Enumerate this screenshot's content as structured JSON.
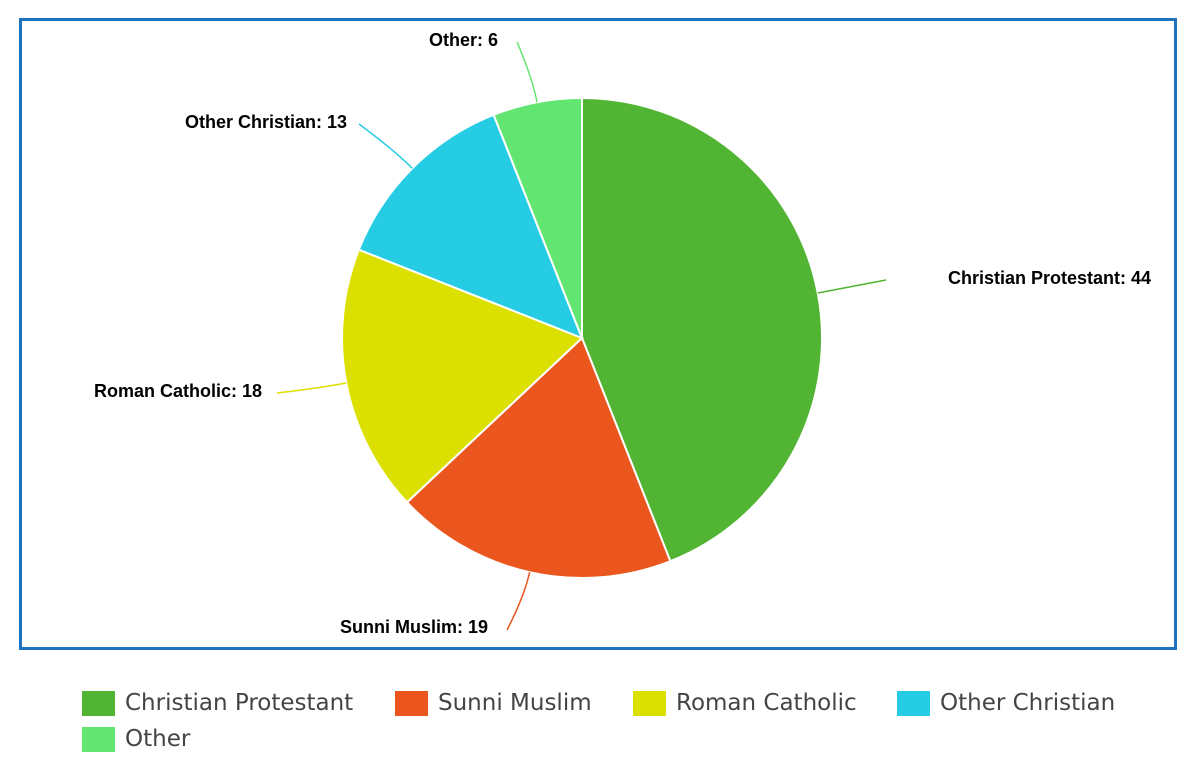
{
  "chart_data": {
    "type": "pie",
    "categories": [
      "Christian Protestant",
      "Sunni Muslim",
      "Roman Catholic",
      "Other Christian",
      "Other"
    ],
    "values": [
      44,
      19,
      18,
      13,
      6
    ],
    "colors": [
      "#52b433",
      "#ea561e",
      "#dce000",
      "#26cbe4",
      "#63e571"
    ],
    "data_labels": [
      "Christian Protestant: 44",
      "Sunni Muslim: 19",
      "Roman Catholic: 18",
      "Other Christian: 13",
      "Other: 6"
    ],
    "start_angle": "12 o'clock, clockwise",
    "legend_position": "bottom"
  },
  "legend": {
    "items": [
      {
        "label": "Christian Protestant",
        "color": "#52b433"
      },
      {
        "label": "Sunni Muslim",
        "color": "#ea561e"
      },
      {
        "label": "Roman Catholic",
        "color": "#dce000"
      },
      {
        "label": "Other Christian",
        "color": "#26cbe4"
      },
      {
        "label": "Other",
        "color": "#63e571"
      }
    ]
  }
}
